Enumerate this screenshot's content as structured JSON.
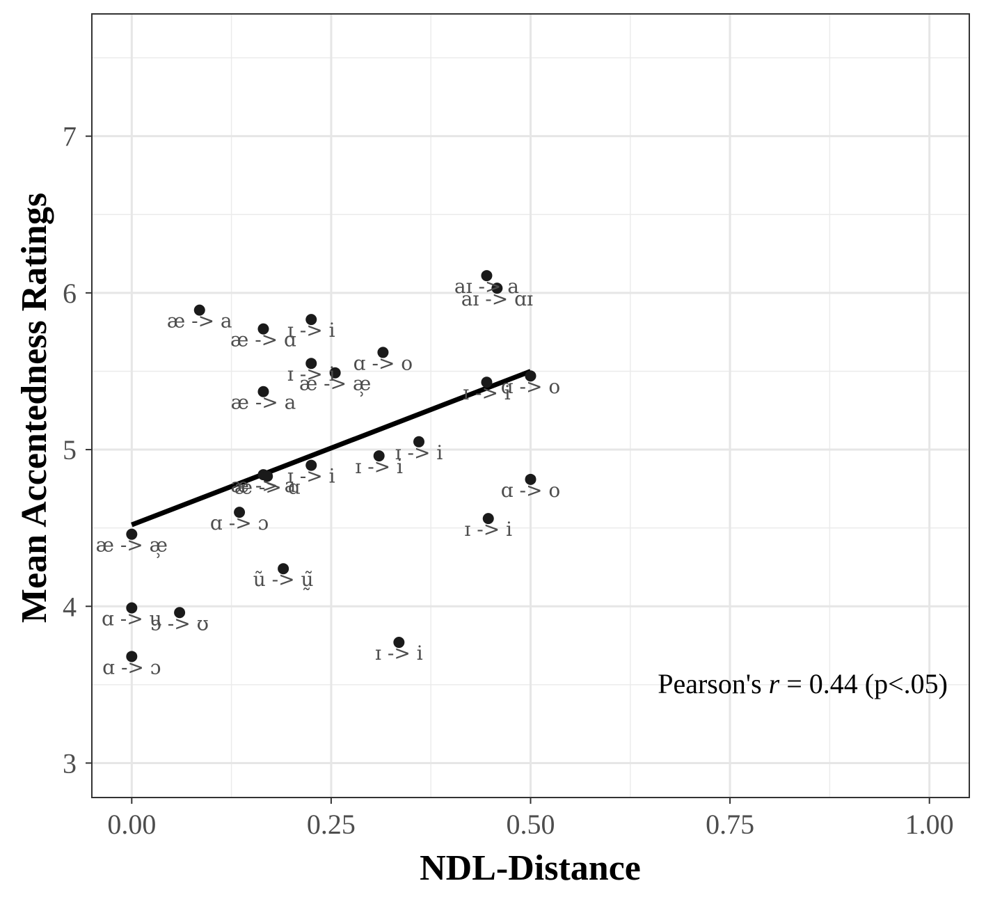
{
  "chart_data": {
    "type": "scatter",
    "xlabel": "NDL-Distance",
    "ylabel": "Mean Accentedness Ratings",
    "xlim": [
      -0.05,
      1.05
    ],
    "ylim": [
      2.78,
      7.78
    ],
    "x_ticks": [
      0.0,
      0.25,
      0.5,
      0.75,
      1.0
    ],
    "x_tick_labels": [
      "0.00",
      "0.25",
      "0.50",
      "0.75",
      "1.00"
    ],
    "y_ticks": [
      3,
      4,
      5,
      6,
      7
    ],
    "y_tick_labels": [
      "3",
      "4",
      "5",
      "6",
      "7"
    ],
    "grid": true,
    "annotation": {
      "prefix": "Pearson's ",
      "r": "r",
      "value": " = 0.44 (p<.05)"
    },
    "fit_line": {
      "x": [
        0.0,
        0.5
      ],
      "y": [
        4.52,
        5.5
      ]
    },
    "points": [
      {
        "x": 0.445,
        "y": 6.11,
        "label": "aɪ -> a"
      },
      {
        "x": 0.458,
        "y": 6.03,
        "label": "aɪ -> ɑɪ"
      },
      {
        "x": 0.085,
        "y": 5.89,
        "label": "æ -> a"
      },
      {
        "x": 0.165,
        "y": 5.77,
        "label": "æ -> ɑ"
      },
      {
        "x": 0.225,
        "y": 5.83,
        "label": "ɪ -> i"
      },
      {
        "x": 0.315,
        "y": 5.62,
        "label": "ɑ -> o"
      },
      {
        "x": 0.225,
        "y": 5.55,
        "label": "ɪ -> i"
      },
      {
        "x": 0.255,
        "y": 5.49,
        "label": "æ -> æ̹"
      },
      {
        "x": 0.165,
        "y": 5.37,
        "label": "æ -> a"
      },
      {
        "x": 0.445,
        "y": 5.43,
        "label": "ɪ -> i"
      },
      {
        "x": 0.5,
        "y": 5.47,
        "label": "ɑ -> o"
      },
      {
        "x": 0.36,
        "y": 5.05,
        "label": "ɪ -> i"
      },
      {
        "x": 0.31,
        "y": 4.96,
        "label": "ɪ -> i"
      },
      {
        "x": 0.225,
        "y": 4.9,
        "label": "ɪ -> i"
      },
      {
        "x": 0.165,
        "y": 4.84,
        "label": "æ -> a"
      },
      {
        "x": 0.17,
        "y": 4.83,
        "label": "æ -> ɑ"
      },
      {
        "x": 0.5,
        "y": 4.81,
        "label": "ɑ -> o"
      },
      {
        "x": 0.135,
        "y": 4.6,
        "label": "ɑ -> ɔ"
      },
      {
        "x": 0.447,
        "y": 4.56,
        "label": "ɪ -> i"
      },
      {
        "x": 0.0,
        "y": 4.46,
        "label": "æ -> æ̹"
      },
      {
        "x": 0.19,
        "y": 4.24,
        "label": "ũ -> ṵ̃"
      },
      {
        "x": 0.0,
        "y": 3.99,
        "label": "ɑ -> u"
      },
      {
        "x": 0.06,
        "y": 3.96,
        "label": "ɔ -> ʊ"
      },
      {
        "x": 0.335,
        "y": 3.77,
        "label": "ɪ -> i"
      },
      {
        "x": 0.0,
        "y": 3.68,
        "label": "ɑ -> ɔ"
      }
    ]
  }
}
